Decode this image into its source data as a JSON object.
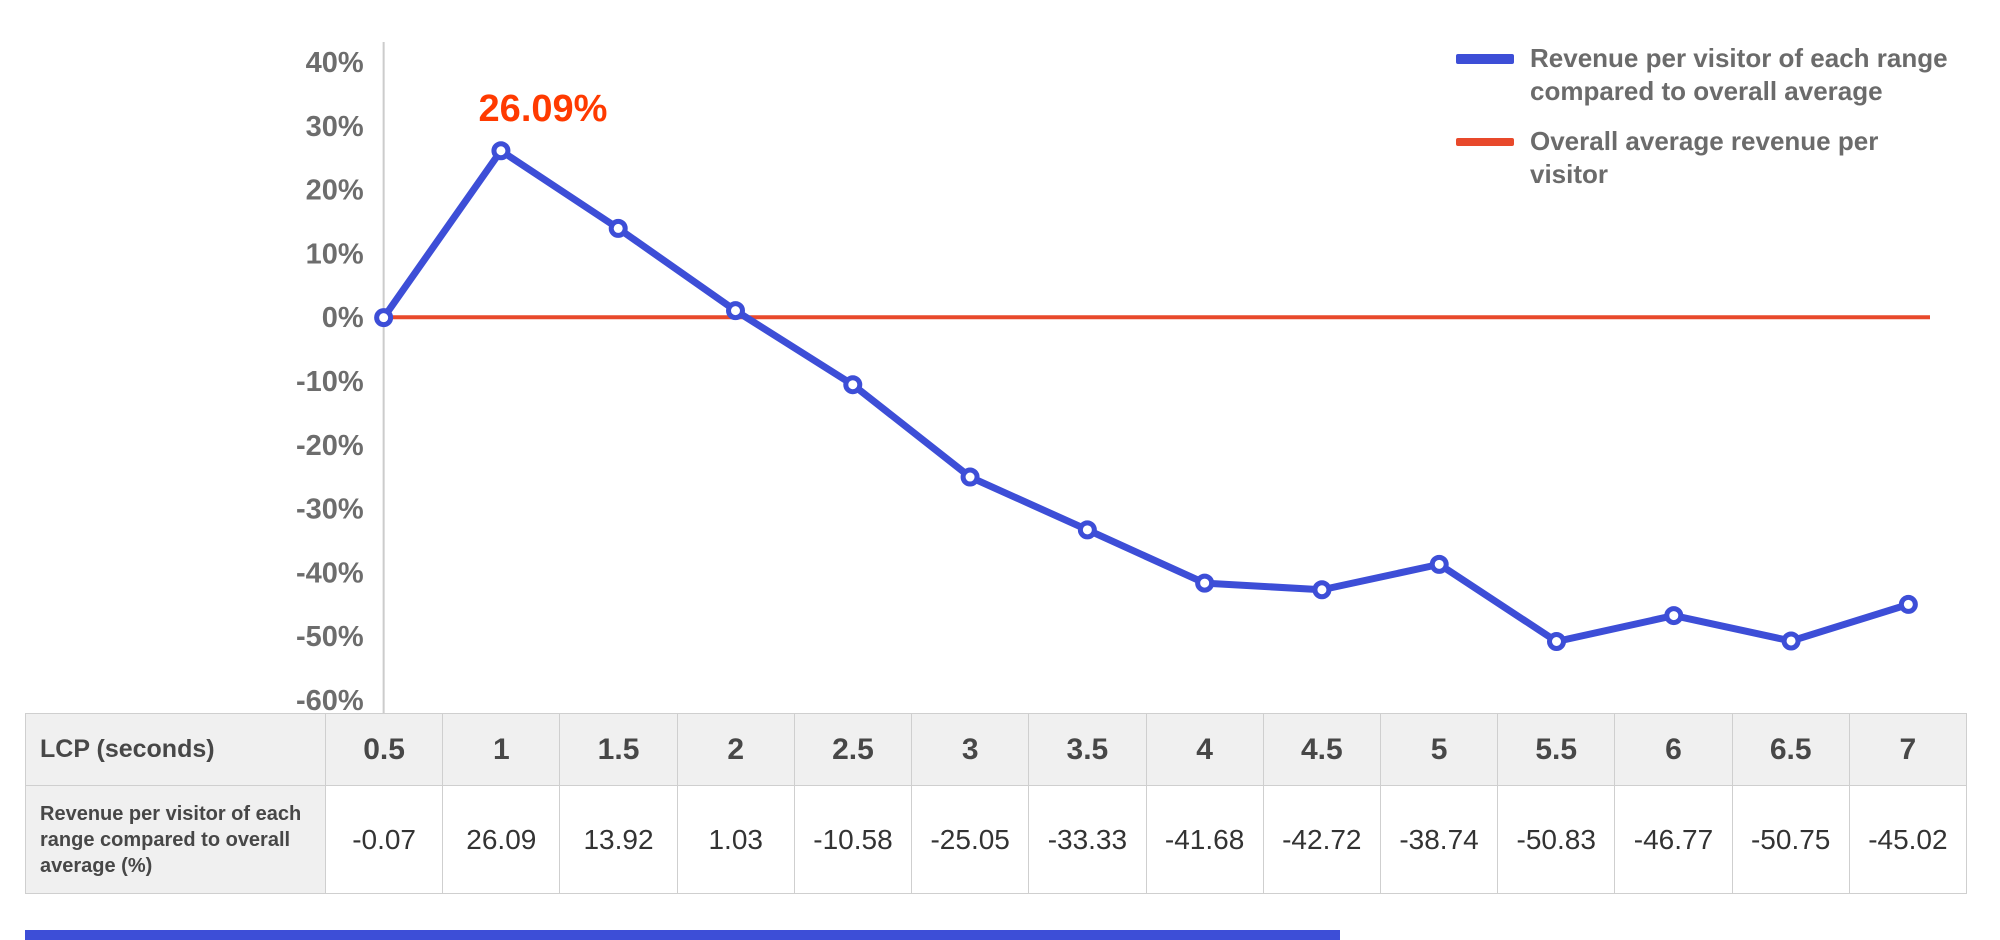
{
  "chart_data": {
    "type": "line",
    "x": [
      0.5,
      1,
      1.5,
      2,
      2.5,
      3,
      3.5,
      4,
      4.5,
      5,
      5.5,
      6,
      6.5,
      7
    ],
    "xlabel": "LCP (seconds)",
    "ylabel": "",
    "ylim": [
      -60,
      40
    ],
    "y_ticks": [
      "40%",
      "30%",
      "20%",
      "10%",
      "0%",
      "-10%",
      "-20%",
      "-30%",
      "-40%",
      "-50%",
      "-60%"
    ],
    "y_tick_values": [
      40,
      30,
      20,
      10,
      0,
      -10,
      -20,
      -30,
      -40,
      -50,
      -60
    ],
    "grid": "off",
    "legend_position": "top-right",
    "series": [
      {
        "name": "Revenue per visitor of each range compared to overall average",
        "color": "#3d4ed7",
        "values": [
          -0.07,
          26.09,
          13.92,
          1.03,
          -10.58,
          -25.05,
          -33.33,
          -41.68,
          -42.72,
          -38.74,
          -50.83,
          -46.77,
          -50.75,
          -45.02
        ]
      },
      {
        "name": "Overall average revenue per visitor",
        "color": "#e8492b",
        "values": [
          0,
          0,
          0,
          0,
          0,
          0,
          0,
          0,
          0,
          0,
          0,
          0,
          0,
          0
        ]
      }
    ],
    "annotation": {
      "text": "26.09%",
      "x": 1,
      "y": 26.09,
      "color": "#ff3a00"
    }
  },
  "legend": {
    "items": [
      {
        "label": "Revenue per visitor of each range compared to overall average",
        "color": "#3d4ed7"
      },
      {
        "label": "Overall average revenue per visitor",
        "color": "#e8492b"
      }
    ]
  },
  "table": {
    "row1_header": "LCP (seconds)",
    "row2_header": "Revenue per visitor of each range compared to overall average (%)",
    "columns": [
      "0.5",
      "1",
      "1.5",
      "2",
      "2.5",
      "3",
      "3.5",
      "4",
      "4.5",
      "5",
      "5.5",
      "6",
      "6.5",
      "7"
    ],
    "values": [
      "-0.07",
      "26.09",
      "13.92",
      "1.03",
      "-10.58",
      "-25.05",
      "-33.33",
      "-41.68",
      "-42.72",
      "-38.74",
      "-50.83",
      "-46.77",
      "-50.75",
      "-45.02"
    ]
  },
  "colors": {
    "revenue_line": "#3d4ed7",
    "average_line": "#e8492b",
    "annotation": "#ff3a00",
    "axis": "#cccccc"
  }
}
